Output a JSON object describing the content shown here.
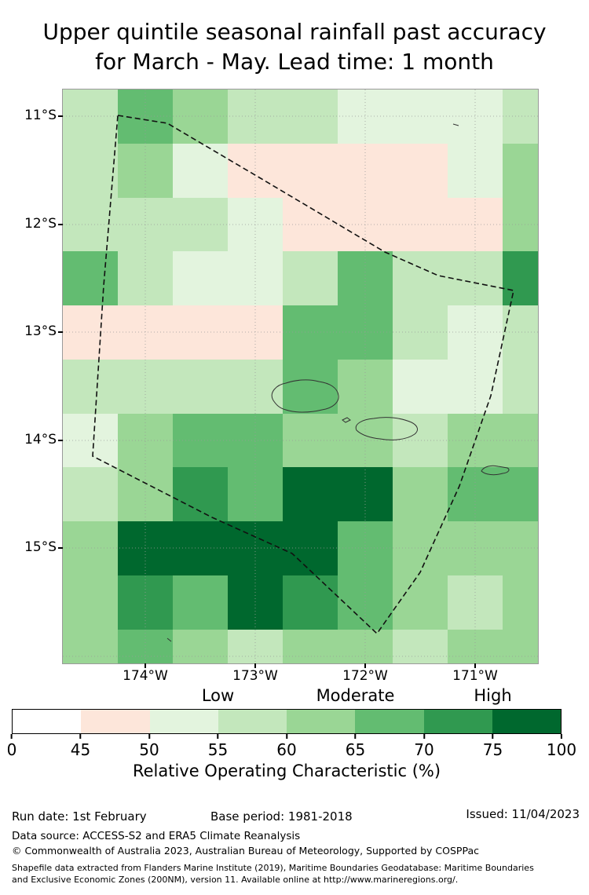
{
  "title": {
    "line1": "Upper quintile seasonal rainfall past accuracy",
    "line2": "for March - May. Lead time: 1 month"
  },
  "map": {
    "y_ticks": [
      "11°S",
      "12°S",
      "13°S",
      "14°S",
      "15°S"
    ],
    "x_ticks": [
      "174°W",
      "173°W",
      "172°W",
      "171°W"
    ]
  },
  "colorbar": {
    "category_labels": [
      "Low",
      "Moderate",
      "High"
    ],
    "tick_labels": [
      "0",
      "45",
      "50",
      "55",
      "60",
      "65",
      "70",
      "75",
      "100"
    ],
    "axis_label": "Relative Operating Characteristic (%)"
  },
  "footer": {
    "run_date": "Run date: 1st February",
    "base_period": "Base period: 1981-2018",
    "issued": "Issued: 11/04/2023",
    "data_source": "Data source: ACCESS-S2 and ERA5 Climate Reanalysis",
    "copyright": "© Commonwealth of Australia 2023, Australian Bureau of Meteorology, Supported by COSPPac",
    "shapefile_line1": "Shapefile data extracted from Flanders Marine Institute (2019), Maritime Boundaries Geodatabase: Maritime Boundaries",
    "shapefile_line2": "and Exclusive Economic Zones (200NM), version 11. Available online at http://www.marineregions.org/."
  },
  "chart_data": {
    "type": "heatmap",
    "title": "Upper quintile seasonal rainfall past accuracy for March - May. Lead time: 1 month",
    "metric": "Relative Operating Characteristic (%)",
    "x_axis": {
      "tick_labels": [
        "174°W",
        "173°W",
        "172°W",
        "171°W"
      ],
      "range_deg_west": [
        174.75,
        170.4
      ]
    },
    "y_axis": {
      "tick_labels": [
        "11°S",
        "12°S",
        "13°S",
        "14°S",
        "15°S"
      ],
      "range_deg_south": [
        10.75,
        16.05
      ]
    },
    "cell_size_deg": 0.5,
    "grid": "graticule dotted, EEZ dashed boundary overlay, island coastlines outlined",
    "legend": {
      "position": "bottom",
      "categories": [
        {
          "label": "Low",
          "at_percent": 55
        },
        {
          "label": "Moderate",
          "at_percent": 65
        },
        {
          "label": "High",
          "at_percent": 75
        }
      ]
    },
    "bins": [
      {
        "range": [
          0,
          45
        ],
        "color": "#ffffff"
      },
      {
        "range": [
          45,
          50
        ],
        "color": "#fde6da"
      },
      {
        "range": [
          50,
          55
        ],
        "color": "#e3f4de"
      },
      {
        "range": [
          55,
          60
        ],
        "color": "#c3e7bc"
      },
      {
        "range": [
          60,
          65
        ],
        "color": "#9ad695"
      },
      {
        "range": [
          65,
          70
        ],
        "color": "#63bc71"
      },
      {
        "range": [
          70,
          75
        ],
        "color": "#309950"
      },
      {
        "range": [
          75,
          100
        ],
        "color": "#00682e"
      }
    ],
    "values_order": "rows north to south (10.75°S–16°S), columns west to east (174.75°W–170.4°W), estimated ROC %",
    "values": [
      [
        57,
        67,
        62,
        57,
        57,
        52,
        52,
        52,
        57
      ],
      [
        57,
        62,
        52,
        47,
        47,
        47,
        47,
        52,
        62
      ],
      [
        57,
        57,
        57,
        52,
        47,
        47,
        47,
        47,
        62
      ],
      [
        67,
        57,
        52,
        52,
        57,
        67,
        57,
        57,
        72
      ],
      [
        47,
        47,
        47,
        47,
        67,
        67,
        57,
        52,
        57
      ],
      [
        57,
        57,
        57,
        57,
        67,
        62,
        52,
        52,
        57
      ],
      [
        52,
        62,
        67,
        67,
        62,
        62,
        57,
        62,
        62
      ],
      [
        57,
        62,
        72,
        67,
        77,
        77,
        62,
        67,
        67
      ],
      [
        62,
        77,
        77,
        77,
        77,
        67,
        62,
        62,
        62
      ],
      [
        62,
        72,
        67,
        77,
        72,
        67,
        62,
        57,
        62
      ],
      [
        62,
        67,
        62,
        57,
        62,
        62,
        57,
        62,
        62
      ]
    ]
  }
}
